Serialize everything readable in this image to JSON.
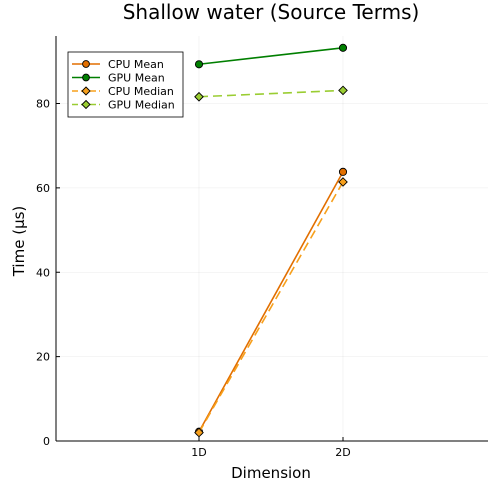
{
  "chart_data": {
    "type": "line",
    "title": "Shallow water (Source Terms)",
    "xlabel": "Dimension",
    "ylabel": "Time (μs)",
    "categories": [
      "1D",
      "2D"
    ],
    "y_ticks": [
      "0",
      "20",
      "40",
      "60",
      "80"
    ],
    "ylim": [
      0,
      96
    ],
    "grid": true,
    "legend_position": "top-left",
    "series": [
      {
        "name": "CPU Mean",
        "values": [
          2.2,
          63.8
        ],
        "color": "#e26f00",
        "marker": "circle",
        "line_style": "solid"
      },
      {
        "name": "GPU Mean",
        "values": [
          89.3,
          93.2
        ],
        "color": "#007f00",
        "marker": "circle",
        "line_style": "solid"
      },
      {
        "name": "CPU Median",
        "values": [
          2.0,
          61.4
        ],
        "color": "#f7a01c",
        "marker": "diamond",
        "line_style": "dashed"
      },
      {
        "name": "GPU Median",
        "values": [
          81.6,
          83.1
        ],
        "color": "#9acd32",
        "marker": "diamond",
        "line_style": "dashed"
      }
    ]
  }
}
